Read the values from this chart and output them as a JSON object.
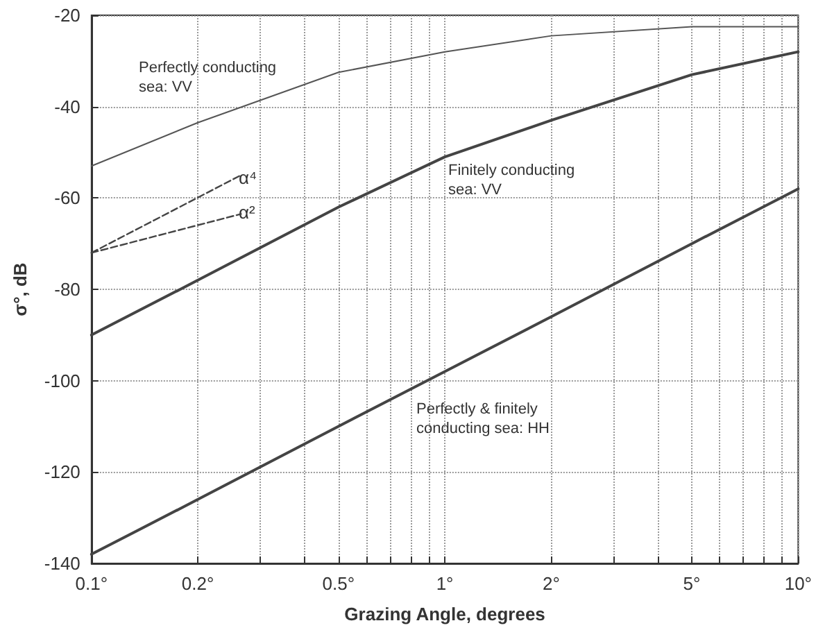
{
  "chart_data": {
    "type": "line",
    "xlabel": "Grazing Angle, degrees",
    "ylabel": "σ°, dB",
    "log": "x",
    "grid": true,
    "marker": "none",
    "xlim": [
      0.1,
      10
    ],
    "ylim": [
      -140,
      -20
    ],
    "xticks": [
      {
        "value": 0.1,
        "label": "0.1°"
      },
      {
        "value": 0.2,
        "label": "0.2°"
      },
      {
        "value": 0.3,
        "label": null
      },
      {
        "value": 0.4,
        "label": null
      },
      {
        "value": 0.5,
        "label": "0.5°"
      },
      {
        "value": 0.6,
        "label": null
      },
      {
        "value": 0.7,
        "label": null
      },
      {
        "value": 0.8,
        "label": null
      },
      {
        "value": 0.9,
        "label": null
      },
      {
        "value": 1,
        "label": "1°"
      },
      {
        "value": 2,
        "label": "2°"
      },
      {
        "value": 3,
        "label": null
      },
      {
        "value": 4,
        "label": null
      },
      {
        "value": 5,
        "label": "5°"
      },
      {
        "value": 6,
        "label": null
      },
      {
        "value": 7,
        "label": null
      },
      {
        "value": 8,
        "label": null
      },
      {
        "value": 9,
        "label": null
      },
      {
        "value": 10,
        "label": "10°"
      }
    ],
    "yticks": [
      -140,
      -120,
      -100,
      -80,
      -60,
      -40,
      -20
    ],
    "series": [
      {
        "color": "#555555",
        "line_style": "solid",
        "x": [
          0.1,
          0.2,
          0.5,
          1,
          2,
          5,
          10
        ],
        "values": [
          -53,
          -43.5,
          -32.5,
          -28,
          -24.5,
          -22.5,
          -22.5
        ]
      },
      {
        "color": "#444444",
        "line_style": "solid",
        "x": [
          0.1,
          0.2,
          0.5,
          1,
          2,
          5,
          10
        ],
        "values": [
          -90,
          -78,
          -62,
          -51,
          -43,
          -33,
          -28
        ]
      },
      {
        "color": "#444444",
        "line_style": "solid",
        "x": [
          0.1,
          0.2,
          0.5,
          1,
          2,
          5,
          10
        ],
        "values": [
          -138,
          -126,
          -110,
          -98,
          -86,
          -70,
          -58
        ]
      },
      {
        "color": "#444444",
        "line_style": "dashed",
        "x": [
          0.1,
          0.265
        ],
        "values": [
          -72,
          -55
        ]
      },
      {
        "color": "#444444",
        "line_style": "dashed",
        "x": [
          0.1,
          0.265
        ],
        "values": [
          -72,
          -63.5
        ]
      }
    ],
    "annotations": [
      "Perfectly conducting\nsea: VV",
      "Finitely conducting\nsea: VV",
      "Perfectly & finitely\nconducting sea: HH",
      "α⁴",
      "α²"
    ]
  }
}
